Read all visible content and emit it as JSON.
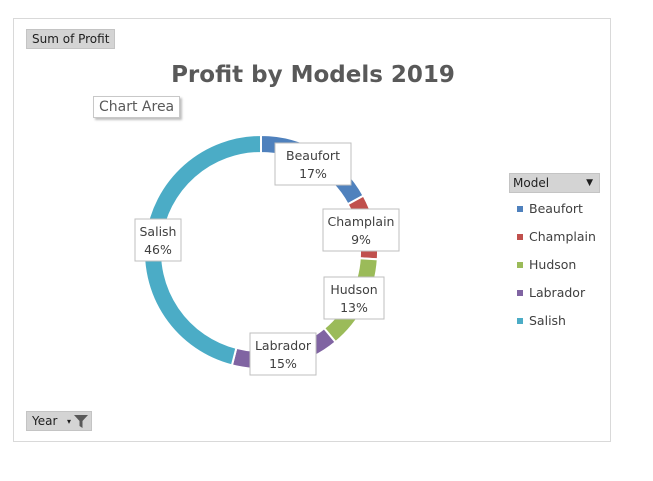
{
  "pivot": {
    "value_field": "Sum of Profit",
    "filter_field": "Year",
    "legend_field": "Model"
  },
  "tooltip": "Chart Area",
  "colors": {
    "Beaufort": "#4f81bd",
    "Champlain": "#c0504d",
    "Hudson": "#9bbb59",
    "Labrador": "#8064a2",
    "Salish": "#4bacc6"
  },
  "chart_data": {
    "type": "pie",
    "style": "doughnut",
    "title": "Profit by Models 2019",
    "legend_position": "right",
    "categories": [
      "Beaufort",
      "Champlain",
      "Hudson",
      "Labrador",
      "Salish"
    ],
    "values": [
      17,
      9,
      13,
      15,
      46
    ],
    "data_labels": [
      "17%",
      "9%",
      "13%",
      "15%",
      "46%"
    ]
  }
}
